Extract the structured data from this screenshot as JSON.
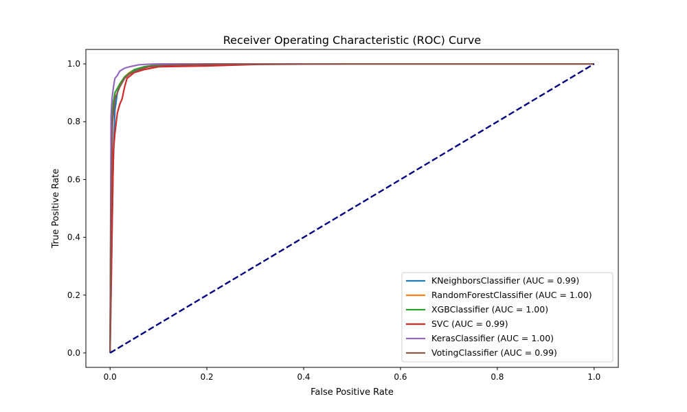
{
  "chart_data": {
    "type": "line",
    "title": "Receiver Operating Characteristic (ROC) Curve",
    "xlabel": "False Positive Rate",
    "ylabel": "True Positive Rate",
    "xlim": [
      -0.05,
      1.05
    ],
    "ylim": [
      -0.05,
      1.05
    ],
    "xticks": [
      0.0,
      0.2,
      0.4,
      0.6,
      0.8,
      1.0
    ],
    "xtick_labels": [
      "0.0",
      "0.2",
      "0.4",
      "0.6",
      "0.8",
      "1.0"
    ],
    "yticks": [
      0.0,
      0.2,
      0.4,
      0.6,
      0.8,
      1.0
    ],
    "ytick_labels": [
      "0.0",
      "0.2",
      "0.4",
      "0.6",
      "0.8",
      "1.0"
    ],
    "grid": false,
    "legend_position": "lower-right",
    "series": [
      {
        "name": "KNeighborsClassifier (AUC = 0.99)",
        "color": "#1f77b4",
        "x": [
          0,
          0.003,
          0.006,
          0.01,
          0.015,
          0.02,
          0.03,
          0.04,
          0.06,
          0.1,
          0.2,
          0.5,
          1.0
        ],
        "y": [
          0,
          0.3,
          0.62,
          0.84,
          0.9,
          0.93,
          0.955,
          0.97,
          0.985,
          0.995,
          0.998,
          1.0,
          1.0
        ]
      },
      {
        "name": "RandomForestClassifier (AUC = 1.00)",
        "color": "#ff7f0e",
        "x": [
          0,
          0.002,
          0.005,
          0.01,
          0.02,
          0.03,
          0.04,
          0.05,
          0.07,
          0.1,
          0.2,
          0.5,
          1.0
        ],
        "y": [
          0,
          0.6,
          0.82,
          0.9,
          0.93,
          0.955,
          0.97,
          0.98,
          0.99,
          0.997,
          1.0,
          1.0,
          1.0
        ]
      },
      {
        "name": "XGBClassifier (AUC = 1.00)",
        "color": "#2ca02c",
        "x": [
          0,
          0.002,
          0.005,
          0.01,
          0.02,
          0.03,
          0.05,
          0.07,
          0.1,
          0.2,
          0.5,
          1.0
        ],
        "y": [
          0,
          0.65,
          0.85,
          0.9,
          0.93,
          0.955,
          0.98,
          0.99,
          0.997,
          1.0,
          1.0,
          1.0
        ]
      },
      {
        "name": "SVC (AUC = 0.99)",
        "color": "#d62728",
        "x": [
          0,
          0.004,
          0.007,
          0.01,
          0.015,
          0.02,
          0.025,
          0.03,
          0.035,
          0.05,
          0.07,
          0.1,
          0.2,
          0.3,
          0.5,
          1.0
        ],
        "y": [
          0,
          0.43,
          0.7,
          0.76,
          0.83,
          0.86,
          0.88,
          0.92,
          0.95,
          0.97,
          0.98,
          0.99,
          0.993,
          0.998,
          1.0,
          1.0
        ]
      },
      {
        "name": "KerasClassifier (AUC = 1.00)",
        "color": "#9467bd",
        "x": [
          0,
          0.002,
          0.004,
          0.007,
          0.01,
          0.015,
          0.02,
          0.03,
          0.04,
          0.06,
          0.08,
          0.1,
          0.2,
          1.0
        ],
        "y": [
          0,
          0.82,
          0.88,
          0.92,
          0.95,
          0.96,
          0.975,
          0.985,
          0.99,
          0.997,
          0.999,
          1.0,
          1.0,
          1.0
        ]
      },
      {
        "name": "VotingClassifier (AUC = 0.99)",
        "color": "#8c564b",
        "x": [
          0,
          0.002,
          0.005,
          0.01,
          0.02,
          0.03,
          0.04,
          0.06,
          0.08,
          0.12,
          0.2,
          0.5,
          1.0
        ],
        "y": [
          0,
          0.5,
          0.8,
          0.88,
          0.92,
          0.95,
          0.965,
          0.98,
          0.99,
          0.996,
          0.999,
          1.0,
          1.0
        ]
      }
    ],
    "diagonal": {
      "color": "#000080",
      "x": [
        0,
        1
      ],
      "y": [
        0,
        1
      ],
      "style": "dashed"
    }
  }
}
